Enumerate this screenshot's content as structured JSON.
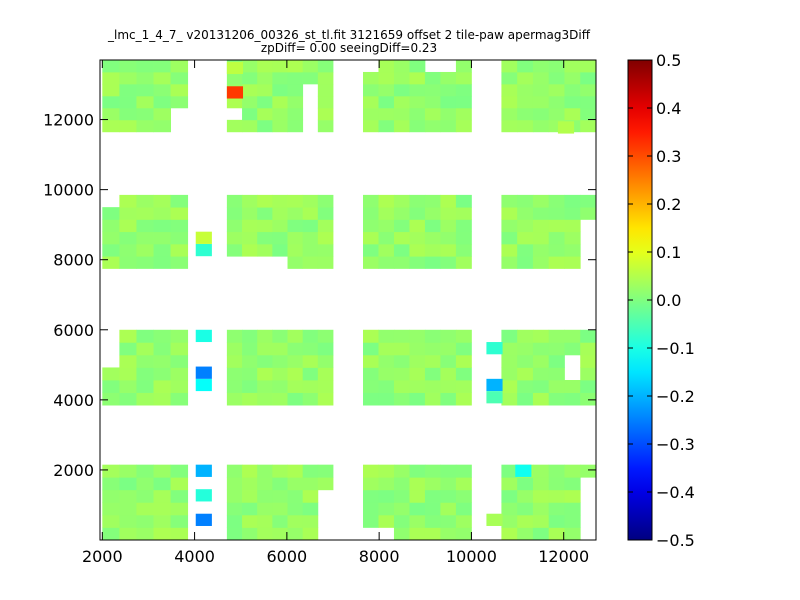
{
  "chart_data": {
    "type": "heatmap",
    "title_lines": [
      "_lmc_1_4_7_ v20131206_00326_st_tl.fit 3121659 offset 2 tile-paw apermag3Diff",
      "zpDiff= 0.00 seeingDiff=0.23"
    ],
    "xlabel": "",
    "ylabel": "",
    "xlim": [
      1950,
      12700
    ],
    "ylim": [
      0,
      13700
    ],
    "x_ticks": [
      2000,
      4000,
      6000,
      8000,
      10000,
      12000
    ],
    "y_ticks": [
      2000,
      4000,
      6000,
      8000,
      10000,
      12000
    ],
    "colorbar": {
      "colormap": "jet",
      "range": [
        -0.5,
        0.5
      ],
      "ticks": [
        0.5,
        0.4,
        0.3,
        0.2,
        0.1,
        0.0,
        -0.1,
        -0.2,
        -0.3,
        -0.4,
        -0.5
      ],
      "tick_labels": [
        "0.5",
        "0.4",
        "0.3",
        "0.2",
        "0.1",
        "0.0",
        "−0.1",
        "−0.2",
        "−0.3",
        "−0.4",
        "−0.5"
      ]
    },
    "cell_size": 350,
    "columns_x": [
      [
        2000,
        3850
      ],
      [
        4700,
        7000
      ],
      [
        7650,
        10000
      ],
      [
        10650,
        12700
      ]
    ],
    "rows_y": [
      [
        0,
        2150
      ],
      [
        3850,
        6000
      ],
      [
        7750,
        9850
      ],
      [
        11650,
        13700
      ]
    ],
    "base_value": 0.02,
    "value_jitter": 0.025,
    "holes": [
      [
        1,
        3,
        0,
        1
      ],
      [
        2,
        3,
        0,
        5
      ],
      [
        2,
        3,
        4,
        5
      ],
      [
        2,
        3,
        5,
        5
      ],
      [
        1,
        2,
        0,
        0
      ],
      [
        1,
        2,
        1,
        0
      ],
      [
        1,
        2,
        2,
        0
      ],
      [
        1,
        2,
        3,
        0
      ],
      [
        1,
        3,
        5,
        0
      ],
      [
        1,
        3,
        5,
        1
      ],
      [
        1,
        3,
        5,
        2
      ],
      [
        1,
        3,
        5,
        3
      ],
      [
        2,
        0,
        0,
        0
      ],
      [
        2,
        0,
        1,
        0
      ],
      [
        0,
        2,
        0,
        5
      ],
      [
        3,
        1,
        4,
        2
      ],
      [
        3,
        1,
        4,
        3
      ],
      [
        3,
        2,
        5,
        0
      ],
      [
        3,
        2,
        5,
        1
      ],
      [
        3,
        2,
        5,
        2
      ],
      [
        3,
        2,
        5,
        3
      ],
      [
        1,
        0,
        6,
        0
      ],
      [
        1,
        0,
        6,
        1
      ],
      [
        1,
        0,
        6,
        2
      ],
      [
        1,
        0,
        6,
        3
      ],
      [
        3,
        0,
        5,
        0
      ],
      [
        3,
        0,
        5,
        1
      ],
      [
        3,
        0,
        5,
        2
      ],
      [
        3,
        0,
        5,
        3
      ],
      [
        3,
        0,
        5,
        4
      ],
      [
        0,
        1,
        0,
        3
      ],
      [
        0,
        1,
        0,
        4
      ],
      [
        0,
        1,
        0,
        5
      ],
      [
        0,
        3,
        4,
        0
      ],
      [
        0,
        3,
        4,
        1
      ]
    ],
    "highlights": [
      {
        "x": 4200,
        "y": 575,
        "value": -0.25
      },
      {
        "x": 4200,
        "y": 1275,
        "value": -0.09
      },
      {
        "x": 4200,
        "y": 1975,
        "value": -0.2
      },
      {
        "x": 4200,
        "y": 4425,
        "value": -0.12
      },
      {
        "x": 4200,
        "y": 4775,
        "value": -0.25
      },
      {
        "x": 4200,
        "y": 5825,
        "value": -0.1
      },
      {
        "x": 4200,
        "y": 8275,
        "value": -0.08
      },
      {
        "x": 4200,
        "y": 8625,
        "value": 0.07
      },
      {
        "x": 4875,
        "y": 12775,
        "value": 0.32
      },
      {
        "x": 4875,
        "y": 13475,
        "value": 0.06
      },
      {
        "x": 10500,
        "y": 4425,
        "value": -0.2
      },
      {
        "x": 10500,
        "y": 4075,
        "value": -0.05
      },
      {
        "x": 10500,
        "y": 5475,
        "value": -0.08
      },
      {
        "x": 11125,
        "y": 1975,
        "value": -0.11
      },
      {
        "x": 10500,
        "y": 575,
        "value": 0.04
      },
      {
        "x": 12050,
        "y": 11775,
        "value": 0.05
      }
    ]
  }
}
